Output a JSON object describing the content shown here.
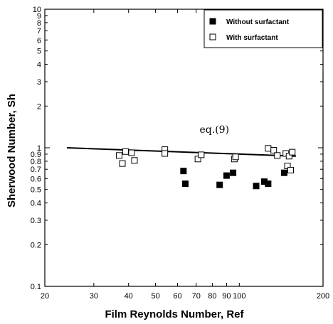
{
  "chart_data": {
    "type": "scatter",
    "title": "",
    "xlabel": "Film Reynolds Number, Ref",
    "ylabel": "Sherwood Number, Sh",
    "xscale": "log",
    "yscale": "log",
    "xlim": [
      20,
      200
    ],
    "ylim": [
      0.1,
      10
    ],
    "grid": false,
    "legend_position": "top-right",
    "x_ticks": [
      20,
      30,
      40,
      50,
      60,
      70,
      80,
      90,
      100,
      200
    ],
    "x_tick_labels": [
      "20",
      "30",
      "40",
      "50",
      "60",
      "70",
      "80",
      "90",
      "100",
      "200"
    ],
    "y_ticks": [
      0.1,
      0.2,
      0.3,
      0.4,
      0.5,
      0.6,
      0.7,
      0.8,
      0.9,
      1,
      2,
      3,
      4,
      5,
      6,
      7,
      8,
      9,
      10
    ],
    "y_tick_labels": [
      "0.1",
      "0.2",
      "0.3",
      "0.4",
      "0.5",
      "0.6",
      "0.7",
      "0.8",
      "0.9",
      "1",
      "2",
      "3",
      "4",
      "5",
      "6",
      "7",
      "8",
      "9",
      "10"
    ],
    "series": [
      {
        "name": "Without surfactant",
        "marker": "filled-square",
        "color": "#000000",
        "points": [
          [
            63,
            0.68
          ],
          [
            64,
            0.55
          ],
          [
            85,
            0.54
          ],
          [
            90,
            0.63
          ],
          [
            95,
            0.66
          ],
          [
            115,
            0.53
          ],
          [
            123,
            0.57
          ],
          [
            127,
            0.55
          ],
          [
            145,
            0.66
          ]
        ]
      },
      {
        "name": "With surfactant",
        "marker": "open-square",
        "color": "#000000",
        "points": [
          [
            37,
            0.88
          ],
          [
            38,
            0.77
          ],
          [
            39,
            0.94
          ],
          [
            41,
            0.92
          ],
          [
            42,
            0.81
          ],
          [
            54,
            0.97
          ],
          [
            54,
            0.91
          ],
          [
            71,
            0.83
          ],
          [
            73,
            0.89
          ],
          [
            96,
            0.83
          ],
          [
            97,
            0.86
          ],
          [
            127,
            0.99
          ],
          [
            133,
            0.96
          ],
          [
            137,
            0.88
          ],
          [
            147,
            0.91
          ],
          [
            149,
            0.74
          ],
          [
            151,
            0.87
          ],
          [
            153,
            0.69
          ],
          [
            155,
            0.93
          ]
        ]
      }
    ],
    "fit_line": {
      "label": "eq.(9)",
      "points": [
        [
          24,
          1.0
        ],
        [
          160,
          0.87
        ]
      ]
    }
  }
}
